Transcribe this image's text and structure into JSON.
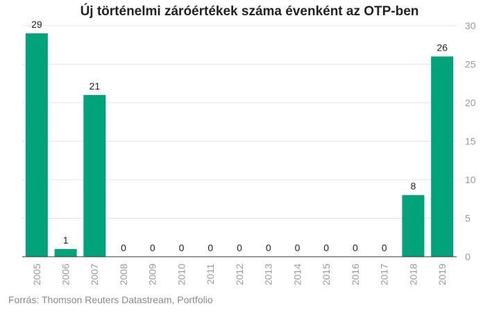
{
  "chart_data": {
    "type": "bar",
    "title": "Új történelmi záróértékek száma évenként az OTP-ben",
    "source": "Forrás: Thomson Reuters Datastream, Portfolio",
    "categories": [
      "2005",
      "2006",
      "2007",
      "2008",
      "2009",
      "2010",
      "2011",
      "2012",
      "2013",
      "2014",
      "2015",
      "2016",
      "2017",
      "2018",
      "2019"
    ],
    "values": [
      29,
      1,
      21,
      0,
      0,
      0,
      0,
      0,
      0,
      0,
      0,
      0,
      0,
      8,
      26
    ],
    "ylim": [
      0,
      30
    ],
    "yticks": [
      0,
      5,
      10,
      15,
      20,
      25,
      30
    ],
    "y_axis_side": "right",
    "grid": true,
    "bar_color": "#00a37a",
    "grid_color": "#e3e3e3",
    "tick_color": "#999999",
    "label_color": "#222222"
  }
}
